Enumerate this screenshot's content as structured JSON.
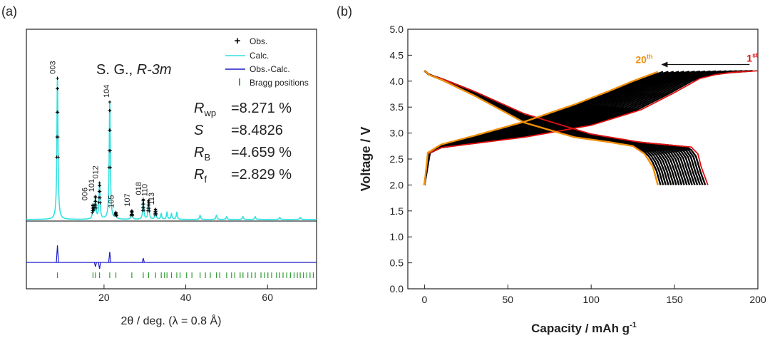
{
  "panel_a": {
    "label": "(a)",
    "space_group_prefix": "S. G.,",
    "space_group": "R-3m",
    "xlabel": "2θ / deg. (λ = 0.8 Å)",
    "legend": [
      "Obs.",
      "Calc.",
      "Obs.-Calc.",
      "Bragg positions"
    ],
    "stats": [
      {
        "sym": "R",
        "sub": "wp",
        "value": "=8.271 %"
      },
      {
        "sym": "S",
        "sub": "",
        "value": "=8.4826"
      },
      {
        "sym": "R",
        "sub": "B",
        "value": "=4.659 %"
      },
      {
        "sym": "R",
        "sub": "f",
        "value": "=2.829 %"
      }
    ],
    "colors": {
      "obs": "#000000",
      "calc": "#33e0e0",
      "diff": "#1a1acc",
      "bragg": "#2e9a2e"
    }
  },
  "panel_b": {
    "label": "(b)",
    "cycle_first_label": "1",
    "cycle_first_sup": "st",
    "cycle_last_label": "20",
    "cycle_last_sup": "th",
    "colors": {
      "first": "#e01010",
      "last": "#f0900a",
      "mid": "#000000"
    }
  },
  "chart_data": [
    {
      "type": "line",
      "title": "",
      "xlabel": "2θ / deg. (λ = 0.8 Å)",
      "ylabel": "",
      "xlim": [
        1,
        72
      ],
      "x_ticks": [
        20,
        40,
        60
      ],
      "series": [
        {
          "name": "Obs.",
          "marker": "+"
        },
        {
          "name": "Calc."
        },
        {
          "name": "Obs.-Calc."
        },
        {
          "name": "Bragg positions"
        }
      ],
      "peaks": [
        {
          "hkl": "003",
          "two_theta": 8.6,
          "intensity": 100
        },
        {
          "hkl": "006",
          "two_theta": 17.3,
          "intensity": 9
        },
        {
          "hkl": "101",
          "two_theta": 17.9,
          "intensity": 15
        },
        {
          "hkl": "012",
          "two_theta": 18.9,
          "intensity": 25
        },
        {
          "hkl": "104",
          "two_theta": 21.4,
          "intensity": 83
        },
        {
          "hkl": "105",
          "two_theta": 22.9,
          "intensity": 4
        },
        {
          "hkl": "107",
          "two_theta": 26.8,
          "intensity": 6
        },
        {
          "hkl": "018",
          "two_theta": 29.6,
          "intensity": 14
        },
        {
          "hkl": "110",
          "two_theta": 30.9,
          "intensity": 13
        },
        {
          "hkl": "113",
          "two_theta": 32.6,
          "intensity": 7
        }
      ],
      "minor_peaks": [
        {
          "two_theta": 34.0,
          "intensity": 4
        },
        {
          "two_theta": 35.4,
          "intensity": 5
        },
        {
          "two_theta": 36.5,
          "intensity": 4
        },
        {
          "two_theta": 37.8,
          "intensity": 5
        },
        {
          "two_theta": 43.5,
          "intensity": 3
        },
        {
          "two_theta": 47.5,
          "intensity": 3
        },
        {
          "two_theta": 50.0,
          "intensity": 2
        },
        {
          "two_theta": 54.0,
          "intensity": 2
        },
        {
          "two_theta": 57.0,
          "intensity": 2
        },
        {
          "two_theta": 63.0,
          "intensity": 1.5
        },
        {
          "two_theta": 68.0,
          "intensity": 1.5
        }
      ],
      "difference_spikes": [
        {
          "two_theta": 8.6,
          "value": 8
        },
        {
          "two_theta": 17.9,
          "value": -2
        },
        {
          "two_theta": 18.9,
          "value": -3
        },
        {
          "two_theta": 21.4,
          "value": 5
        },
        {
          "two_theta": 29.6,
          "value": 2
        }
      ],
      "bragg_positions": [
        8.6,
        17.3,
        17.9,
        18.9,
        21.4,
        22.9,
        26.8,
        29.6,
        30.9,
        32.6,
        34.0,
        34.8,
        35.4,
        36.5,
        37.8,
        38.6,
        40.2,
        41.5,
        43.5,
        44.8,
        46.0,
        47.5,
        48.3,
        50.0,
        51.2,
        52.0,
        53.3,
        54.0,
        55.2,
        56.1,
        57.0,
        58.4,
        59.3,
        60.1,
        61.0,
        62.2,
        63.0,
        63.8,
        64.7,
        65.6,
        66.5,
        67.3,
        68.0,
        68.8,
        69.6,
        70.4,
        71.2
      ]
    },
    {
      "type": "line",
      "title": "",
      "xlabel": "Capacity / mAh g-1",
      "ylabel": "Voltage / V",
      "xlim": [
        -10,
        200
      ],
      "ylim": [
        0.0,
        5.0
      ],
      "x_ticks": [
        0,
        50,
        100,
        150,
        200
      ],
      "y_ticks": [
        0.0,
        0.5,
        1.0,
        1.5,
        2.0,
        2.5,
        3.0,
        3.5,
        4.0,
        4.5,
        5.0
      ],
      "cycles": 20,
      "series": [
        {
          "name": "1st cycle",
          "charge": {
            "x": [
              0,
              2,
              10,
              30,
              60,
              100,
              130,
              150,
              165,
              175,
              185,
              200
            ],
            "y": [
              2.0,
              2.6,
              2.72,
              2.8,
              2.92,
              3.15,
              3.45,
              3.78,
              4.05,
              4.13,
              4.17,
              4.2
            ]
          },
          "discharge": {
            "x": [
              0,
              3,
              10,
              30,
              60,
              100,
              130,
              150,
              160,
              164,
              166,
              170
            ],
            "y": [
              4.2,
              4.12,
              4.05,
              3.8,
              3.37,
              2.98,
              2.82,
              2.76,
              2.73,
              2.6,
              2.35,
              2.0
            ]
          }
        },
        {
          "name": "20th cycle",
          "charge": {
            "x": [
              0,
              2,
              10,
              30,
              60,
              90,
              110,
              125,
              135,
              140
            ],
            "y": [
              2.0,
              2.62,
              2.78,
              2.95,
              3.22,
              3.55,
              3.8,
              4.0,
              4.12,
              4.18
            ]
          },
          "discharge": {
            "x": [
              0,
              3,
              10,
              30,
              60,
              90,
              110,
              125,
              132,
              137,
              140
            ],
            "y": [
              4.2,
              4.12,
              4.03,
              3.72,
              3.2,
              2.92,
              2.83,
              2.75,
              2.6,
              2.35,
              2.0
            ]
          }
        }
      ],
      "annotation": {
        "text": "20th ← 1st",
        "from_x": 195,
        "to_x": 142,
        "y": 4.32
      }
    }
  ]
}
